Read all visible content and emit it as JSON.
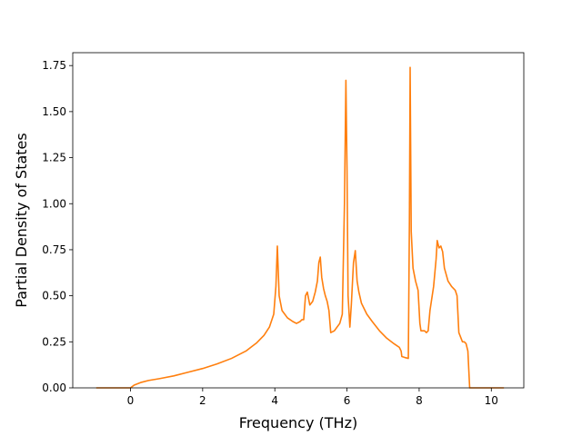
{
  "chart_data": {
    "type": "line",
    "title": "",
    "xlabel": "Frequency (THz)",
    "ylabel": "Partial Density of States",
    "xlim": [
      -1.6,
      10.9
    ],
    "ylim": [
      0,
      1.82
    ],
    "xticks": [
      0,
      2,
      4,
      6,
      8,
      10
    ],
    "xtick_labels": [
      "0",
      "2",
      "4",
      "6",
      "8",
      "10"
    ],
    "yticks": [
      0,
      0.25,
      0.5,
      0.75,
      1.0,
      1.25,
      1.5,
      1.75
    ],
    "ytick_labels": [
      "0.00",
      "0.25",
      "0.50",
      "0.75",
      "1.00",
      "1.25",
      "1.50",
      "1.75"
    ],
    "grid": false,
    "legend": "none",
    "series": [
      {
        "color": "#ff7f0e",
        "x": [
          -0.95,
          0.0,
          0.1,
          0.3,
          0.5,
          0.8,
          1.2,
          1.6,
          2.0,
          2.4,
          2.8,
          3.2,
          3.5,
          3.7,
          3.85,
          3.97,
          4.03,
          4.07,
          4.12,
          4.2,
          4.35,
          4.5,
          4.6,
          4.7,
          4.75,
          4.8,
          4.85,
          4.9,
          4.97,
          5.05,
          5.12,
          5.18,
          5.22,
          5.26,
          5.3,
          5.35,
          5.4,
          5.45,
          5.5,
          5.55,
          5.65,
          5.8,
          5.87,
          5.93,
          5.97,
          6.0,
          6.03,
          6.08,
          6.12,
          6.18,
          6.23,
          6.28,
          6.33,
          6.4,
          6.55,
          6.7,
          6.9,
          7.1,
          7.3,
          7.45,
          7.5,
          7.52,
          7.6,
          7.7,
          7.73,
          7.75,
          7.78,
          7.83,
          7.9,
          7.97,
          8.02,
          8.05,
          8.1,
          8.15,
          8.2,
          8.25,
          8.3,
          8.4,
          8.47,
          8.5,
          8.55,
          8.6,
          8.65,
          8.7,
          8.8,
          8.9,
          9.0,
          9.05,
          9.1,
          9.2,
          9.25,
          9.3,
          9.35,
          9.4,
          9.5,
          10.0,
          10.35
        ],
        "y": [
          0,
          0,
          0.015,
          0.03,
          0.04,
          0.05,
          0.065,
          0.085,
          0.105,
          0.13,
          0.16,
          0.2,
          0.245,
          0.285,
          0.33,
          0.4,
          0.55,
          0.77,
          0.5,
          0.42,
          0.38,
          0.36,
          0.35,
          0.36,
          0.37,
          0.37,
          0.5,
          0.52,
          0.45,
          0.47,
          0.52,
          0.58,
          0.68,
          0.71,
          0.6,
          0.54,
          0.5,
          0.47,
          0.42,
          0.3,
          0.31,
          0.35,
          0.4,
          1.0,
          1.67,
          1.2,
          0.5,
          0.33,
          0.45,
          0.68,
          0.745,
          0.58,
          0.52,
          0.46,
          0.4,
          0.36,
          0.31,
          0.27,
          0.24,
          0.22,
          0.2,
          0.17,
          0.165,
          0.16,
          0.9,
          1.74,
          0.85,
          0.65,
          0.58,
          0.53,
          0.35,
          0.31,
          0.31,
          0.31,
          0.3,
          0.31,
          0.42,
          0.55,
          0.7,
          0.8,
          0.76,
          0.77,
          0.74,
          0.65,
          0.58,
          0.55,
          0.53,
          0.5,
          0.3,
          0.25,
          0.25,
          0.24,
          0.2,
          0.0,
          0.0,
          0.0,
          0.0
        ]
      }
    ]
  }
}
